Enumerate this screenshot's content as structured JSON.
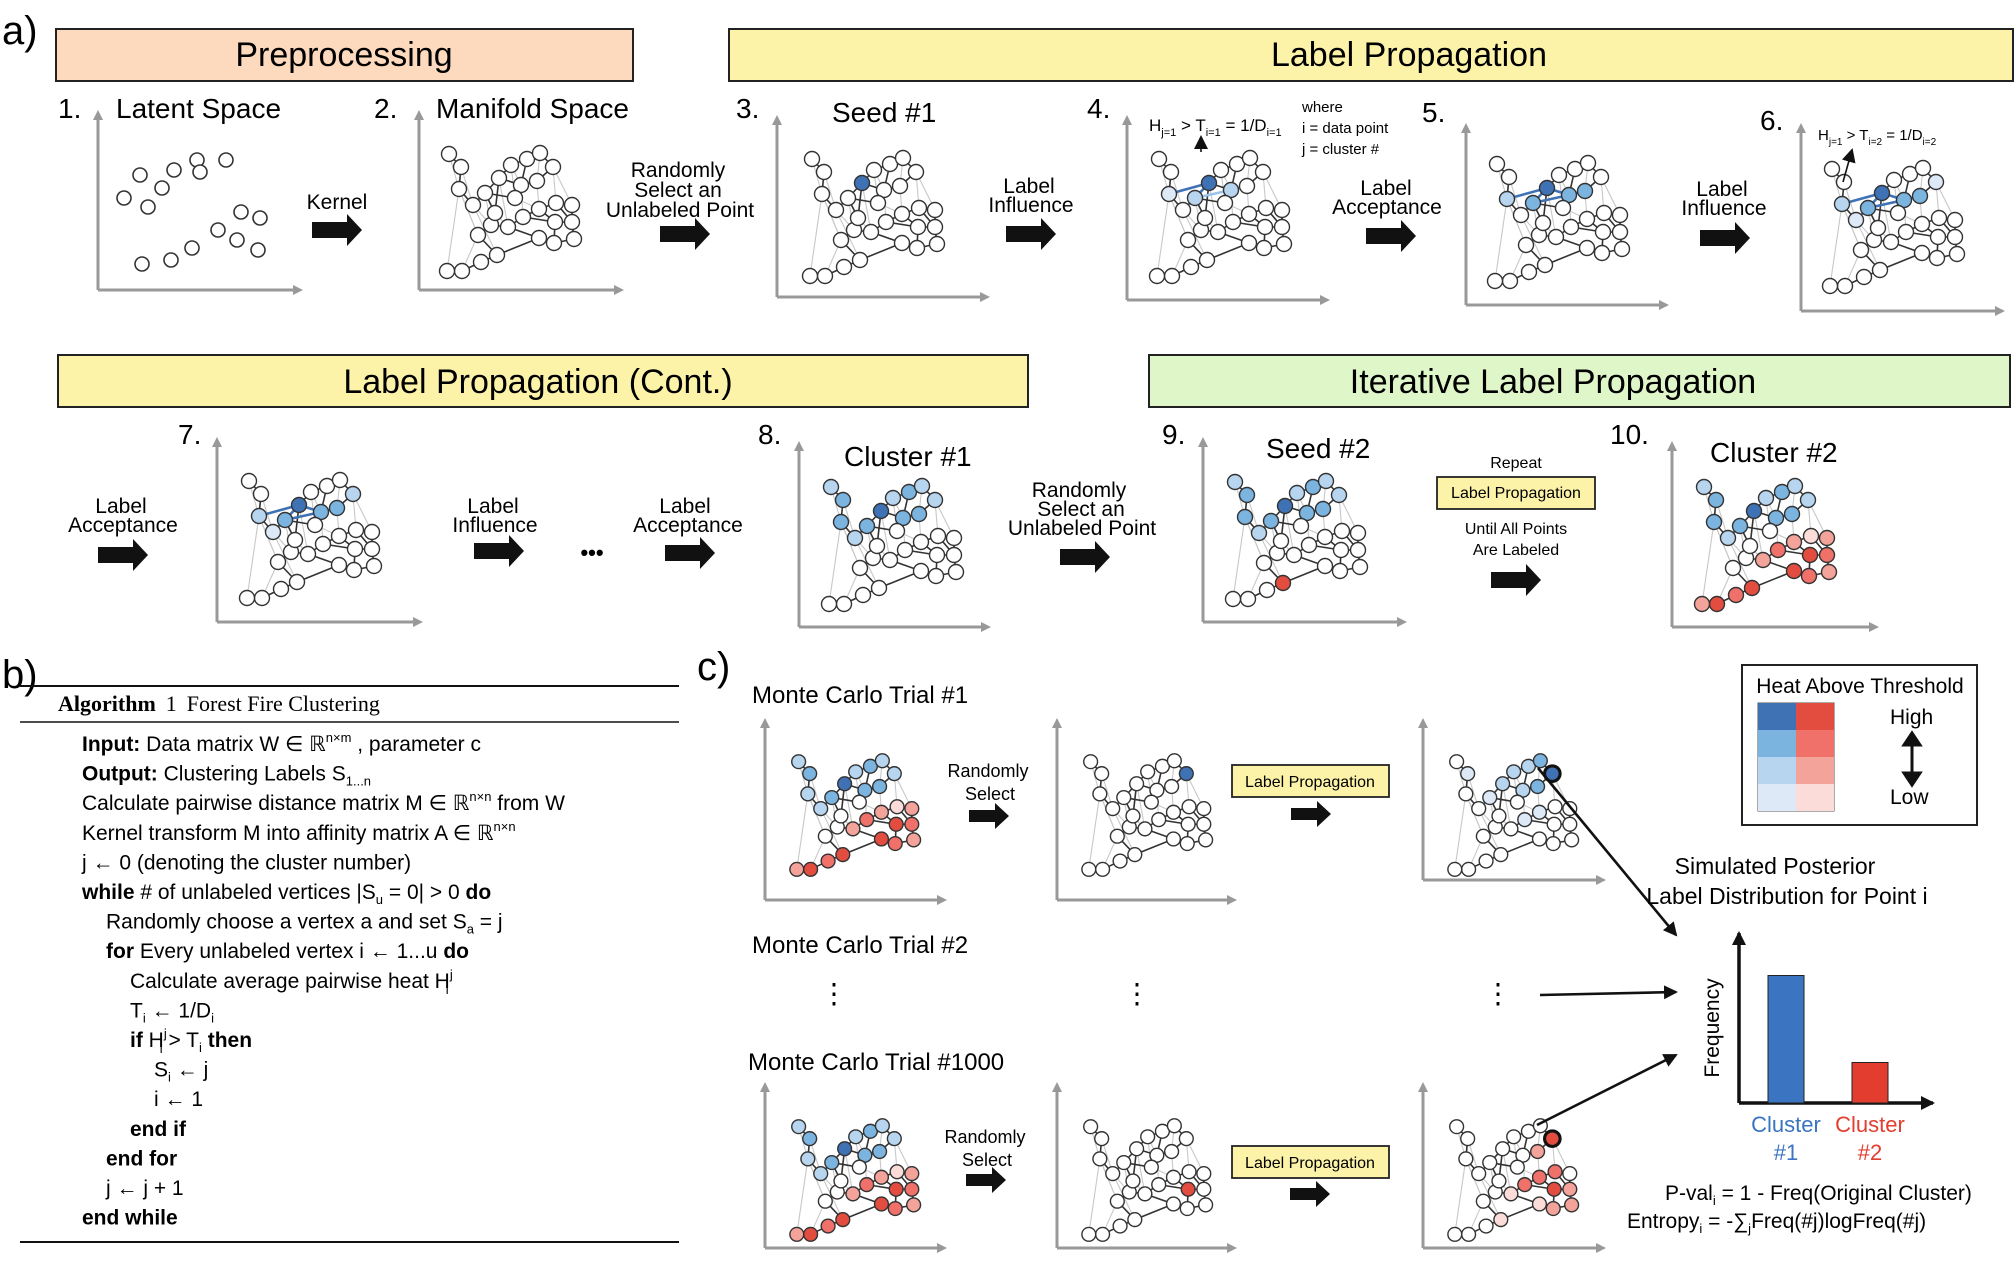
{
  "panel_labels": {
    "a": "a)",
    "b": "b)",
    "c": "c)"
  },
  "colors": {
    "preprocessing": "#fdd9bd",
    "label_propagation": "#fcf3a9",
    "iterative": "#dff6c8",
    "blue_dark": "#3f72b5",
    "blue_mid": "#7cb4e0",
    "blue_light": "#b8d5ef",
    "blue_pale": "#dde9f7",
    "red_dark": "#e34d40",
    "red_mid": "#f0706a",
    "red_light": "#f4a39a",
    "red_pale": "#fbdcd8",
    "bar_blue": "#3b74c1",
    "bar_red": "#e23d2e"
  },
  "panel_a": {
    "headers": {
      "preprocessing": "Preprocessing",
      "label_propagation": "Label Propagation",
      "label_propagation_cont": "Label Propagation (Cont.)",
      "iterative": "Iterative Label Propagation"
    },
    "step_numbers": [
      "1.",
      "2.",
      "3.",
      "4.",
      "5.",
      "6.",
      "7.",
      "8.",
      "9.",
      "10."
    ],
    "step_titles": {
      "latent": "Latent Space",
      "manifold": "Manifold Space",
      "seed1": "Seed #1",
      "cluster1": "Cluster #1",
      "seed2": "Seed #2",
      "cluster2": "Cluster #2"
    },
    "arrow_labels": {
      "kernel": "Kernel",
      "randomly_select": [
        "Randomly",
        "Select an",
        "Unlabeled Point"
      ],
      "label_influence": [
        "Label",
        "Influence"
      ],
      "label_acceptance": [
        "Label",
        "Acceptance"
      ]
    },
    "ellipsis": "•••",
    "repeat": {
      "top": "Repeat",
      "box": "Label  Propagation",
      "bottom": [
        "Until All Points",
        "Are Labeled"
      ]
    },
    "formula4": {
      "main": "H",
      "sub1": "j=1",
      "gt": " > T",
      "sub2": "i=1",
      "rest": " = 1/D",
      "sub3": "i=1"
    },
    "formula6": {
      "main": "H",
      "sub1": "j=1",
      "gt": " > T",
      "sub2": "i=2",
      "rest": " = 1/D",
      "sub3": "i=2"
    },
    "where_block": [
      "where",
      "i = data point",
      "j = cluster #"
    ]
  },
  "panel_b": {
    "title_bold": "Algorithm",
    "title_num": "1",
    "title_rest": "Forest Fire Clustering",
    "lines": [
      {
        "indent": 0,
        "bold": "Input:",
        "text": " Data matrix W ∈ ℝ",
        "sup": "n×m",
        "after": ", parameter c"
      },
      {
        "indent": 0,
        "bold": "Output:",
        "text": " Clustering Labels S",
        "sub": "1...n",
        "after": ""
      },
      {
        "indent": 0,
        "bold": "",
        "text": "Calculate pairwise distance matrix M ∈ ℝ",
        "sup": "n×n",
        "after": " from W"
      },
      {
        "indent": 0,
        "bold": "",
        "text": "Kernel transform M into affinity matrix A ∈ ℝ",
        "sup": "n×n",
        "after": ""
      },
      {
        "indent": 0,
        "bold": "",
        "text": "j ← 0 (denoting the cluster number)",
        "after": ""
      },
      {
        "indent": 0,
        "bold": "while",
        "text": " # of unlabeled vertices |S",
        "sub": "u",
        "after": " = 0| > 0 ",
        "bold2": "do"
      },
      {
        "indent": 1,
        "bold": "",
        "text": "Randomly choose a vertex a and set S",
        "sub": "a",
        "after": " = j"
      },
      {
        "indent": 1,
        "bold": "for",
        "text": " Every unlabeled vertex i ← 1...u ",
        "after": "",
        "bold2": "do"
      },
      {
        "indent": 2,
        "bold": "",
        "text": "Calculate average pairwise heat H",
        "sup": "j",
        "sub": "i",
        "after": ""
      },
      {
        "indent": 2,
        "bold": "",
        "text": "T",
        "sub": "i",
        "after": " ← 1/D",
        "sub2": "i"
      },
      {
        "indent": 2,
        "bold": "if",
        "text": " H",
        "sup": "j",
        "sub": "i",
        "after": " > T",
        "sub2": "i",
        "bold2": " then"
      },
      {
        "indent": 3,
        "bold": "",
        "text": "S",
        "sub": "i",
        "after": " ← j"
      },
      {
        "indent": 3,
        "bold": "",
        "text": "i ← 1",
        "after": ""
      },
      {
        "indent": 2,
        "bold": "end if",
        "text": "",
        "after": ""
      },
      {
        "indent": 1,
        "bold": "end for",
        "text": "",
        "after": ""
      },
      {
        "indent": 1,
        "bold": "",
        "text": "j ← j + 1",
        "after": ""
      },
      {
        "indent": 0,
        "bold": "end while",
        "text": "",
        "after": ""
      }
    ]
  },
  "panel_c": {
    "trials": [
      "Monte Carlo Trial #1",
      "Monte Carlo Trial #2",
      "Monte Carlo Trial #1000"
    ],
    "randomly_select": [
      "Randomly",
      "Select"
    ],
    "label_prop_box": "Label  Propagation",
    "vertical_ellipsis": "⋮",
    "legend": {
      "title": "Heat Above Threshold",
      "high": "High",
      "low": "Low"
    },
    "posterior_title": [
      "Simulated Posterior",
      "Label Distribution for Point i"
    ],
    "y_axis": "Frequency",
    "categories": [
      "Cluster",
      "#1",
      "Cluster",
      "#2"
    ],
    "bar_values": [
      0.85,
      0.27
    ],
    "pval": {
      "a": "P-val",
      "sub": "i",
      "b": " = 1 - Freq(Original Cluster)"
    },
    "entropy": {
      "a": "Entropy",
      "sub": "i",
      "b": " = -∑",
      "sub2": "j",
      "c": "Freq(#j)logFreq(#j)"
    }
  }
}
